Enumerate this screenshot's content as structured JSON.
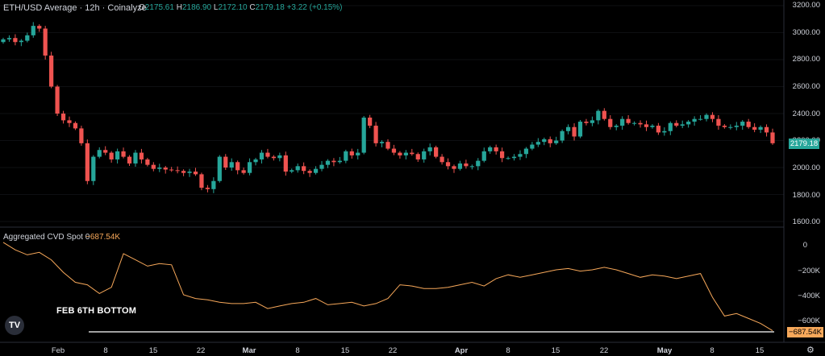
{
  "header": {
    "symbol": "ETH/USD Average · 12h · Coinalyze",
    "o_label": "O",
    "o_value": "2175.61",
    "h_label": "H",
    "h_value": "2186.90",
    "l_label": "L",
    "l_value": "2172.10",
    "c_label": "C",
    "c_value": "2179.18",
    "change": "+3.22 (+0.15%)"
  },
  "indicator": {
    "label": "Aggregated CVD Spot 0",
    "value": "−687.54K"
  },
  "annotation": "FEB 6TH BOTTOM",
  "price_axis_labels": [
    "3200.00",
    "3000.00",
    "2800.00",
    "2600.00",
    "2400.00",
    "2200.00",
    "2000.00",
    "1800.00",
    "1600.00"
  ],
  "cvd_axis_labels": [
    "0",
    "−200K",
    "−400K",
    "−600K"
  ],
  "price_badge": "2179.18",
  "cvd_badge": "−687.54K",
  "x_labels": [
    "Feb",
    "8",
    "15",
    "22",
    "Mar",
    "8",
    "15",
    "22",
    "Apr",
    "8",
    "15",
    "22",
    "May",
    "8",
    "15"
  ],
  "icons": {
    "logo": "tradingview-logo-icon",
    "settings": "gear-icon"
  },
  "colors": {
    "up": "#26a69a",
    "down": "#ef5350",
    "cvd": "#f7a85a",
    "annotation_line": "#ffffff",
    "background": "#000000"
  },
  "chart_data": [
    {
      "type": "candlestick",
      "interval": "12h",
      "ylim": [
        1600,
        3200
      ],
      "x_range": [
        "2024-01-26",
        "2024-05-17"
      ],
      "close_series": [
        2950,
        2960,
        2930,
        2940,
        2980,
        3050,
        3030,
        2830,
        2600,
        2400,
        2350,
        2330,
        2290,
        2180,
        1900,
        2080,
        2130,
        2110,
        2060,
        2120,
        2080,
        2030,
        2110,
        2060,
        2020,
        1990,
        2000,
        1985,
        1980,
        1975,
        1960,
        1970,
        1950,
        1850,
        1840,
        1900,
        2080,
        2000,
        2040,
        1980,
        1960,
        2040,
        2060,
        2110,
        2080,
        2070,
        2090,
        1970,
        1980,
        2010,
        1975,
        1960,
        1990,
        2020,
        2050,
        2040,
        2050,
        2120,
        2090,
        2110,
        2370,
        2310,
        2180,
        2190,
        2140,
        2110,
        2090,
        2110,
        2100,
        2060,
        2120,
        2150,
        2080,
        2040,
        2010,
        1990,
        2030,
        2010,
        2010,
        2050,
        2120,
        2150,
        2120,
        2070,
        2070,
        2080,
        2100,
        2140,
        2170,
        2190,
        2210,
        2180,
        2200,
        2270,
        2300,
        2230,
        2340,
        2330,
        2350,
        2420,
        2360,
        2300,
        2310,
        2360,
        2330,
        2330,
        2320,
        2300,
        2310,
        2260,
        2270,
        2330,
        2310,
        2320,
        2340,
        2360,
        2360,
        2390,
        2360,
        2310,
        2300,
        2300,
        2310,
        2340,
        2300,
        2280,
        2300,
        2260,
        2180
      ]
    },
    {
      "type": "line",
      "name": "Aggregated CVD Spot",
      "ylim": [
        -700000,
        40000
      ],
      "x_range": [
        "2024-01-26",
        "2024-05-17"
      ],
      "values": [
        20000,
        -40000,
        -80000,
        -60000,
        -120000,
        -220000,
        -300000,
        -320000,
        -390000,
        -340000,
        -70000,
        -120000,
        -170000,
        -150000,
        -160000,
        -400000,
        -430000,
        -440000,
        -460000,
        -470000,
        -470000,
        -460000,
        -510000,
        -490000,
        -470000,
        -460000,
        -430000,
        -480000,
        -470000,
        -460000,
        -490000,
        -470000,
        -430000,
        -320000,
        -330000,
        -350000,
        -350000,
        -340000,
        -320000,
        -300000,
        -330000,
        -270000,
        -240000,
        -260000,
        -240000,
        -220000,
        -200000,
        -190000,
        -210000,
        -200000,
        -180000,
        -200000,
        -230000,
        -260000,
        -240000,
        -250000,
        -270000,
        -250000,
        -230000,
        -420000,
        -570000,
        -550000,
        -590000,
        -630000,
        -687540
      ]
    }
  ]
}
